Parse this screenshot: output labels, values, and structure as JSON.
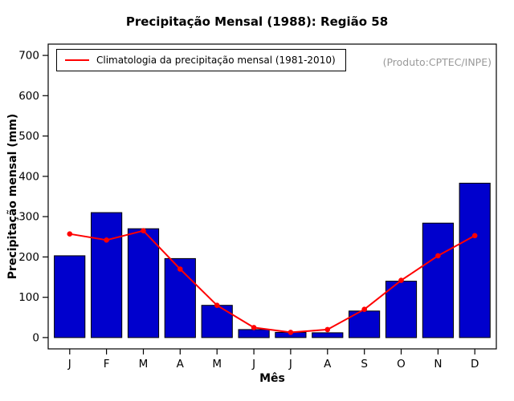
{
  "chart_data": {
    "type": "bar",
    "title": "Precipitação Mensal (1988): Região 58",
    "xlabel": "Mês",
    "ylabel": "Precipitação mensal (mm)",
    "legend": "Climatologia da precipitação mensal (1981-2010)",
    "annotation": "(Produto:CPTEC/INPE)",
    "categories": [
      "J",
      "F",
      "M",
      "A",
      "M",
      "J",
      "J",
      "A",
      "S",
      "O",
      "N",
      "D"
    ],
    "series": [
      {
        "name": "Precipitação mensal 1988",
        "type": "bar",
        "color": "#0000CD",
        "values": [
          203,
          310,
          270,
          196,
          80,
          20,
          13,
          12,
          66,
          140,
          284,
          383
        ]
      },
      {
        "name": "Climatologia da precipitação mensal (1981-2010)",
        "type": "line",
        "color": "#FF0000",
        "values": [
          257,
          242,
          265,
          170,
          80,
          25,
          13,
          20,
          70,
          142,
          203,
          253
        ]
      }
    ],
    "ylim": [
      0,
      700
    ],
    "yticks": [
      0,
      100,
      200,
      300,
      400,
      500,
      600,
      700
    ],
    "grid": false,
    "legend_position": "top-left",
    "annotation_color": "#999999",
    "axis_color": "#000000"
  }
}
